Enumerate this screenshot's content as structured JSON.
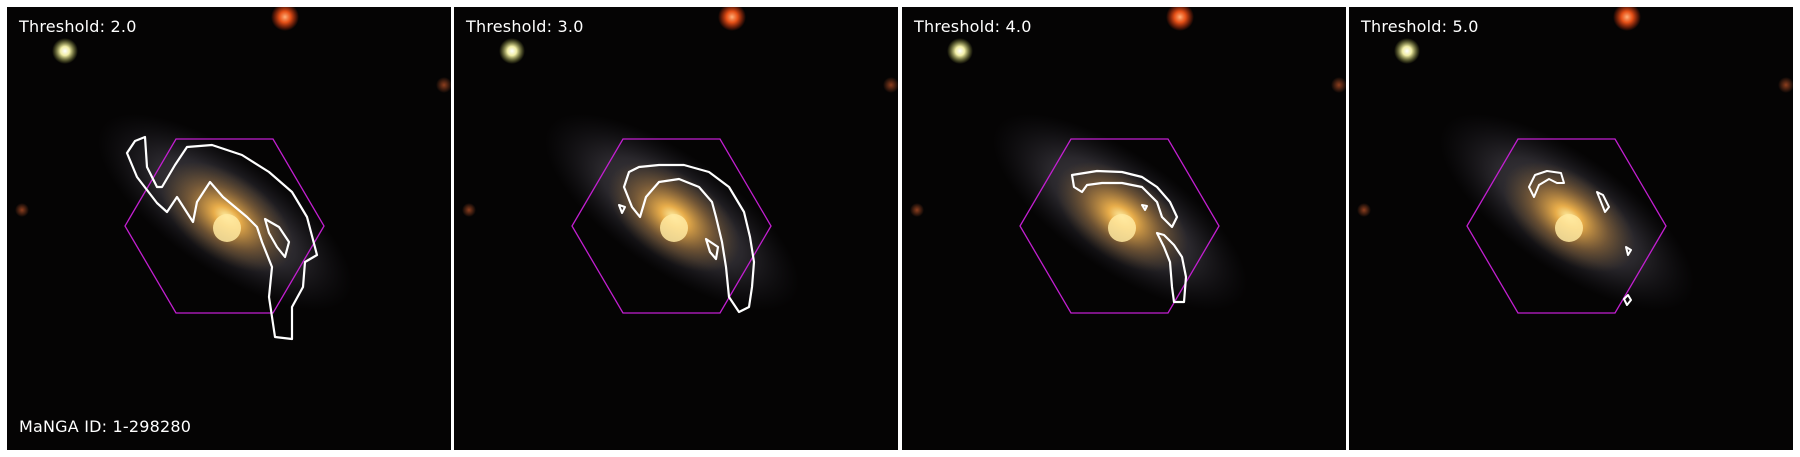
{
  "panels": [
    {
      "label": "Threshold: 2.0",
      "threshold": 2.0
    },
    {
      "label": "Threshold: 3.0",
      "threshold": 3.0
    },
    {
      "label": "Threshold: 4.0",
      "threshold": 4.0
    },
    {
      "label": "Threshold: 5.0",
      "threshold": 5.0
    }
  ],
  "manga_id_label": "MaNGA ID: 1-298280",
  "colors": {
    "background": "#050404",
    "hexagon": "#c21fd0",
    "contour": "#ffffff",
    "text": "#ffffff",
    "galaxy_core": "#ffd27a",
    "star_red": "#ff5a1a",
    "star_yellow": "#ffffc8"
  }
}
